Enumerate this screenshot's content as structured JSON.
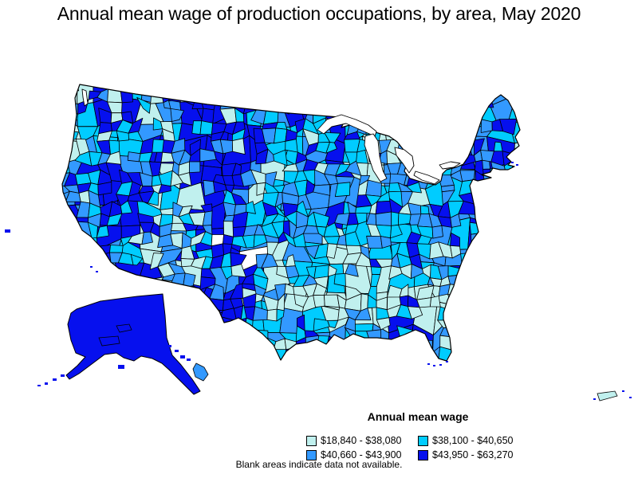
{
  "title": "Annual mean wage of production occupations, by area, May 2020",
  "legend": {
    "title": "Annual mean wage",
    "classes": [
      {
        "label": "$18,840 - $38,080",
        "color": "#c0f0ee"
      },
      {
        "label": "$38,100 - $40,650",
        "color": "#00ccff"
      },
      {
        "label": "$40,660 - $43,900",
        "color": "#3399ff"
      },
      {
        "label": "$43,950 - $63,270",
        "color": "#0610ee"
      }
    ]
  },
  "footnote": "Blank areas indicate data not available.",
  "map": {
    "areas": [
      "Contiguous United States",
      "Alaska",
      "Hawaii",
      "Puerto Rico"
    ],
    "no_data_color": "#ffffff",
    "boundary_color": "#000000"
  },
  "chart_data": {
    "type": "choropleth",
    "title": "Annual mean wage of production occupations, by area, May 2020",
    "legend_title": "Annual mean wage",
    "classes": [
      {
        "range": "$18,840 - $38,080",
        "min": 18840,
        "max": 38080,
        "color": "#c0f0ee"
      },
      {
        "range": "$38,100 - $40,650",
        "min": 38100,
        "max": 40650,
        "color": "#00ccff"
      },
      {
        "range": "$40,660 - $43,900",
        "min": 40660,
        "max": 43900,
        "color": "#3399ff"
      },
      {
        "range": "$43,950 - $63,270",
        "min": 43950,
        "max": 63270,
        "color": "#0610ee"
      }
    ],
    "note": "Blank areas indicate data not available."
  }
}
